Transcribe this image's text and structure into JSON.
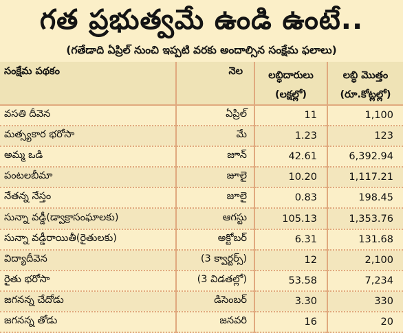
{
  "title": "గత ప్రభుత్వమే ఉండి ఉంటే..",
  "subtitle": "(గతేడాది ఏప్రిల్ నుంచి ఇప్పటి వరకు అందాల్సిన సంక్షేమ ఫలాలు)",
  "headers": {
    "scheme": "సంక్షేమ పథకం",
    "month": "నెల",
    "beneficiaries": "లబ్ధిదారులు",
    "beneficiaries_unit": "(లక్షల్లో)",
    "amount": "లబ్ధి మొత్తం",
    "amount_unit": "(రూ.కోట్లల్లో)"
  },
  "rows": [
    {
      "scheme": "వసతి దీవెన",
      "month": "ఏప్రిల్",
      "beneficiaries": "11",
      "amount": "1,100"
    },
    {
      "scheme": "మత్స్యకార భరోసా",
      "month": "మే",
      "beneficiaries": "1.23",
      "amount": "123"
    },
    {
      "scheme": "అమ్మ ఒడి",
      "month": "జూన్",
      "beneficiaries": "42.61",
      "amount": "6,392.94"
    },
    {
      "scheme": "పంటలబీమా",
      "month": "జూలై",
      "beneficiaries": "10.20",
      "amount": "1,117.21"
    },
    {
      "scheme": "నేతన్న నేస్తం",
      "month": "జూలై",
      "beneficiaries": "0.83",
      "amount": "198.45"
    },
    {
      "scheme": "సున్నా వడ్డీ(డ్వాక్రాసంఘాలకు)",
      "month": "ఆగస్టు",
      "beneficiaries": "105.13",
      "amount": "1,353.76"
    },
    {
      "scheme": "సున్నా వడ్డీరాయితీ(రైతులకు)",
      "month": "అక్టోబర్",
      "beneficiaries": "6.31",
      "amount": "131.68"
    },
    {
      "scheme": "విద్యాదీవెన",
      "month": "(3 క్వార్టర్స్)",
      "beneficiaries": "12",
      "amount": "2,100"
    },
    {
      "scheme": "రైతు భరోసా",
      "month": "(3 విడతల్లో)",
      "beneficiaries": "53.58",
      "amount": "7,234"
    },
    {
      "scheme": "జగనన్న చేదోడు",
      "month": "డిసెంబర్",
      "beneficiaries": "3.30",
      "amount": "330"
    },
    {
      "scheme": "జగనన్న తోడు",
      "month": "జనవరి",
      "beneficiaries": "16",
      "amount": "20"
    }
  ]
}
